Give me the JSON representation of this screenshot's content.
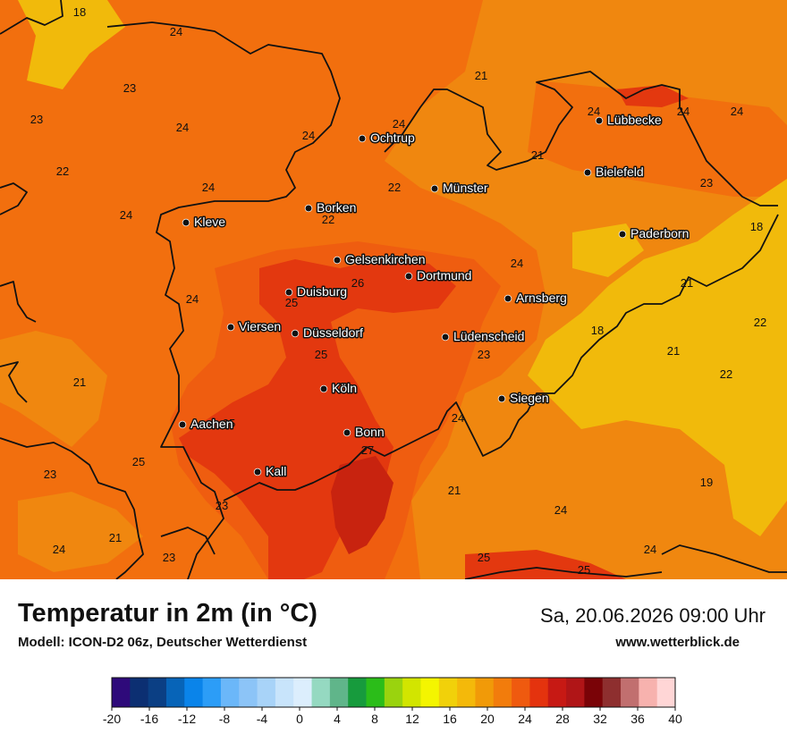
{
  "header": {
    "title": "Temperatur in 2m (in °C)",
    "model": "Modell: ICON-D2 06z, Deutscher Wetterdienst",
    "datetime": "Sa, 20.06.2026 09:00 Uhr",
    "website": "www.wetterblick.de"
  },
  "cities": [
    {
      "name": "Lübbecke",
      "icon": "city-dot"
    },
    {
      "name": "Ochtrup",
      "icon": "city-dot"
    },
    {
      "name": "Bielefeld",
      "icon": "city-dot"
    },
    {
      "name": "Münster",
      "icon": "city-dot"
    },
    {
      "name": "Borken",
      "icon": "city-dot"
    },
    {
      "name": "Kleve",
      "icon": "city-dot"
    },
    {
      "name": "Paderborn",
      "icon": "city-dot"
    },
    {
      "name": "Gelsenkirchen",
      "icon": "city-dot"
    },
    {
      "name": "Dortmund",
      "icon": "city-dot"
    },
    {
      "name": "Duisburg",
      "icon": "city-dot"
    },
    {
      "name": "Arnsberg",
      "icon": "city-dot"
    },
    {
      "name": "Viersen",
      "icon": "city-dot"
    },
    {
      "name": "Düsseldorf",
      "icon": "city-dot"
    },
    {
      "name": "Lüdenscheid",
      "icon": "city-dot"
    },
    {
      "name": "Köln",
      "icon": "city-dot"
    },
    {
      "name": "Siegen",
      "icon": "city-dot"
    },
    {
      "name": "Aachen",
      "icon": "city-dot"
    },
    {
      "name": "Bonn",
      "icon": "city-dot"
    },
    {
      "name": "Kall",
      "icon": "city-dot"
    }
  ],
  "temperature_labels": [
    "18",
    "24",
    "23",
    "23",
    "24",
    "22",
    "24",
    "21",
    "24",
    "24",
    "24",
    "24",
    "21",
    "24",
    "22",
    "22",
    "23",
    "18",
    "25",
    "26",
    "21",
    "24",
    "25",
    "22",
    "21",
    "23",
    "18",
    "21",
    "25",
    "23",
    "22",
    "24",
    "25",
    "27",
    "21",
    "19",
    "23",
    "21",
    "21",
    "24",
    "24",
    "23",
    "25",
    "25"
  ],
  "legend": {
    "ticks": [
      "-20",
      "-16",
      "-12",
      "-8",
      "-4",
      "0",
      "4",
      "8",
      "12",
      "16",
      "20",
      "24",
      "28",
      "32",
      "36",
      "40"
    ],
    "colors": [
      "#2e0a7a",
      "#0c2f72",
      "#0b3f84",
      "#0764b8",
      "#0a84ea",
      "#2c9df7",
      "#6bb7f9",
      "#8cc4f7",
      "#a8d3f8",
      "#c8e4fb",
      "#dceefd",
      "#95d9c1",
      "#60b58a",
      "#179b3d",
      "#2bbd19",
      "#9ad30e",
      "#d2e500",
      "#f4f500",
      "#f1d10a",
      "#f4b90a",
      "#f19a08",
      "#f27c0c",
      "#ef5a0f",
      "#e4330e",
      "#c71914",
      "#b01517",
      "#7a0307",
      "#8e2f2f",
      "#c16f6f",
      "#f7b2ae",
      "#ffd6d6"
    ],
    "min": -20,
    "max": 40,
    "step": 2
  },
  "colors": {
    "orange_light": "#f0870f",
    "orange": "#f26f0e",
    "orange_red": "#ef5d10",
    "red": "#e3380f",
    "dark_red": "#c8230f",
    "yellow": "#f1ba0b",
    "border": "#111111"
  }
}
